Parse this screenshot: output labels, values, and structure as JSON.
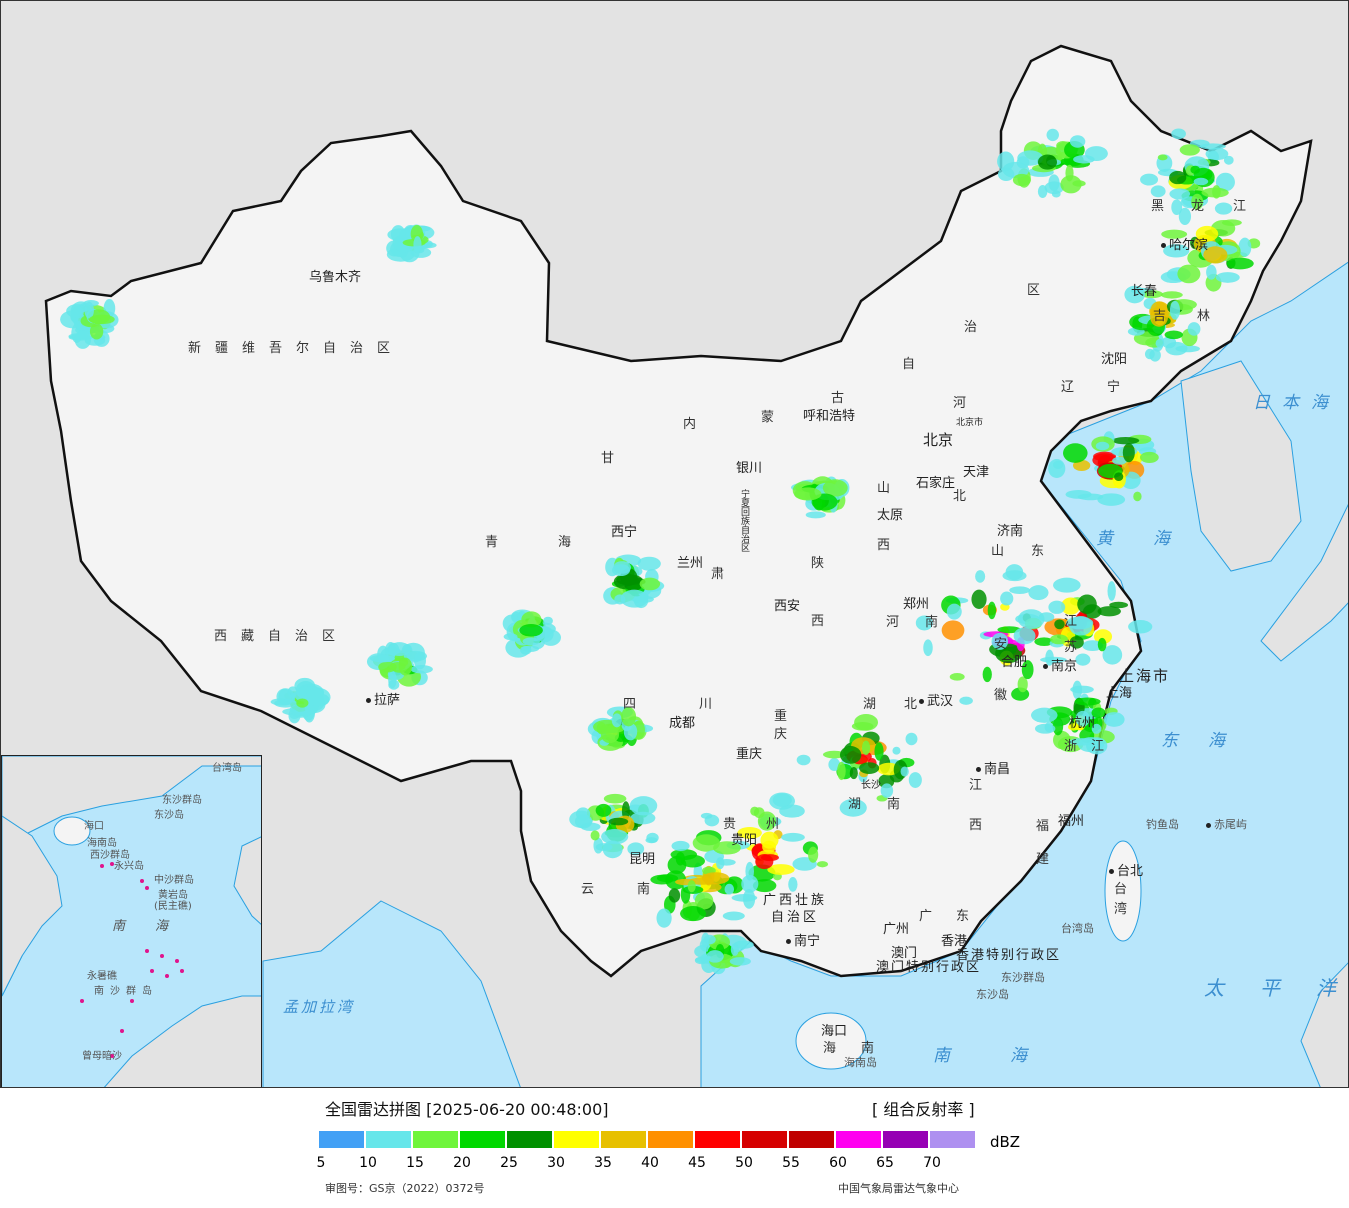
{
  "header": {
    "title": "全国雷达拼图 [2025-06-20 00:48:00]",
    "product": "[ 组合反射率 ]",
    "unit": "dBZ",
    "approval": "审图号：GS京（2022）0372号",
    "source": "中国气象局雷达气象中心"
  },
  "legend": {
    "colors": [
      "#42a0f5",
      "#66e6ea",
      "#6ff53c",
      "#00d800",
      "#009000",
      "#ffff00",
      "#e7c000",
      "#ff9000",
      "#ff0000",
      "#d60000",
      "#c00000",
      "#ff00f0",
      "#9600b4",
      "#ae90f0"
    ],
    "ticks": [
      "5",
      "10",
      "15",
      "20",
      "25",
      "30",
      "35",
      "40",
      "45",
      "50",
      "55",
      "60",
      "65",
      "70"
    ]
  },
  "map": {
    "provinces": [
      "新疆维吾尔自治区",
      "西藏自治区",
      "青海",
      "甘",
      "肃",
      "内",
      "蒙",
      "古",
      "自",
      "治",
      "区",
      "宁夏回族自治区",
      "陕",
      "西",
      "山",
      "西",
      "河",
      "北",
      "山",
      "东",
      "河",
      "南",
      "江",
      "苏",
      "安",
      "徽",
      "浙",
      "江",
      "湖",
      "北",
      "湖",
      "南",
      "江",
      "西",
      "福",
      "建",
      "四",
      "川",
      "贵",
      "州",
      "云",
      "南",
      "广西壮族",
      "自治区",
      "广",
      "东",
      "海",
      "南",
      "黑",
      "龙",
      "江",
      "吉",
      "林",
      "辽",
      "宁",
      "台",
      "湾",
      "重",
      "庆"
    ],
    "cities": [
      "乌鲁木齐",
      "拉萨",
      "西宁",
      "兰州",
      "银川",
      "呼和浩特",
      "北京",
      "天津",
      "石家庄",
      "太原",
      "西安",
      "济南",
      "郑州",
      "南京",
      "合肥",
      "上海市",
      "上海",
      "杭州",
      "武汉",
      "重庆",
      "成都",
      "贵阳",
      "长沙",
      "南昌",
      "福州",
      "昆明",
      "南宁",
      "广州",
      "香港特别行政区",
      "澳门特别行政区",
      "澳门",
      "香港",
      "海口",
      "海南岛",
      "台北",
      "台湾岛",
      "哈尔滨",
      "长春",
      "沈阳",
      "钓鱼岛",
      "赤尾屿",
      "东沙群岛",
      "东沙岛",
      "北京市"
    ],
    "seas": [
      "日本海",
      "东海",
      "太平洋",
      "南海",
      "孟加拉湾",
      "黄海"
    ],
    "inset": [
      "南海",
      "中沙群岛",
      "黄岩岛",
      "(民主礁)",
      "西沙群岛",
      "永兴岛",
      "南沙群岛",
      "永暑礁",
      "曾母暗沙",
      "东沙群岛",
      "东沙岛",
      "海南岛",
      "海口",
      "台湾岛"
    ]
  }
}
